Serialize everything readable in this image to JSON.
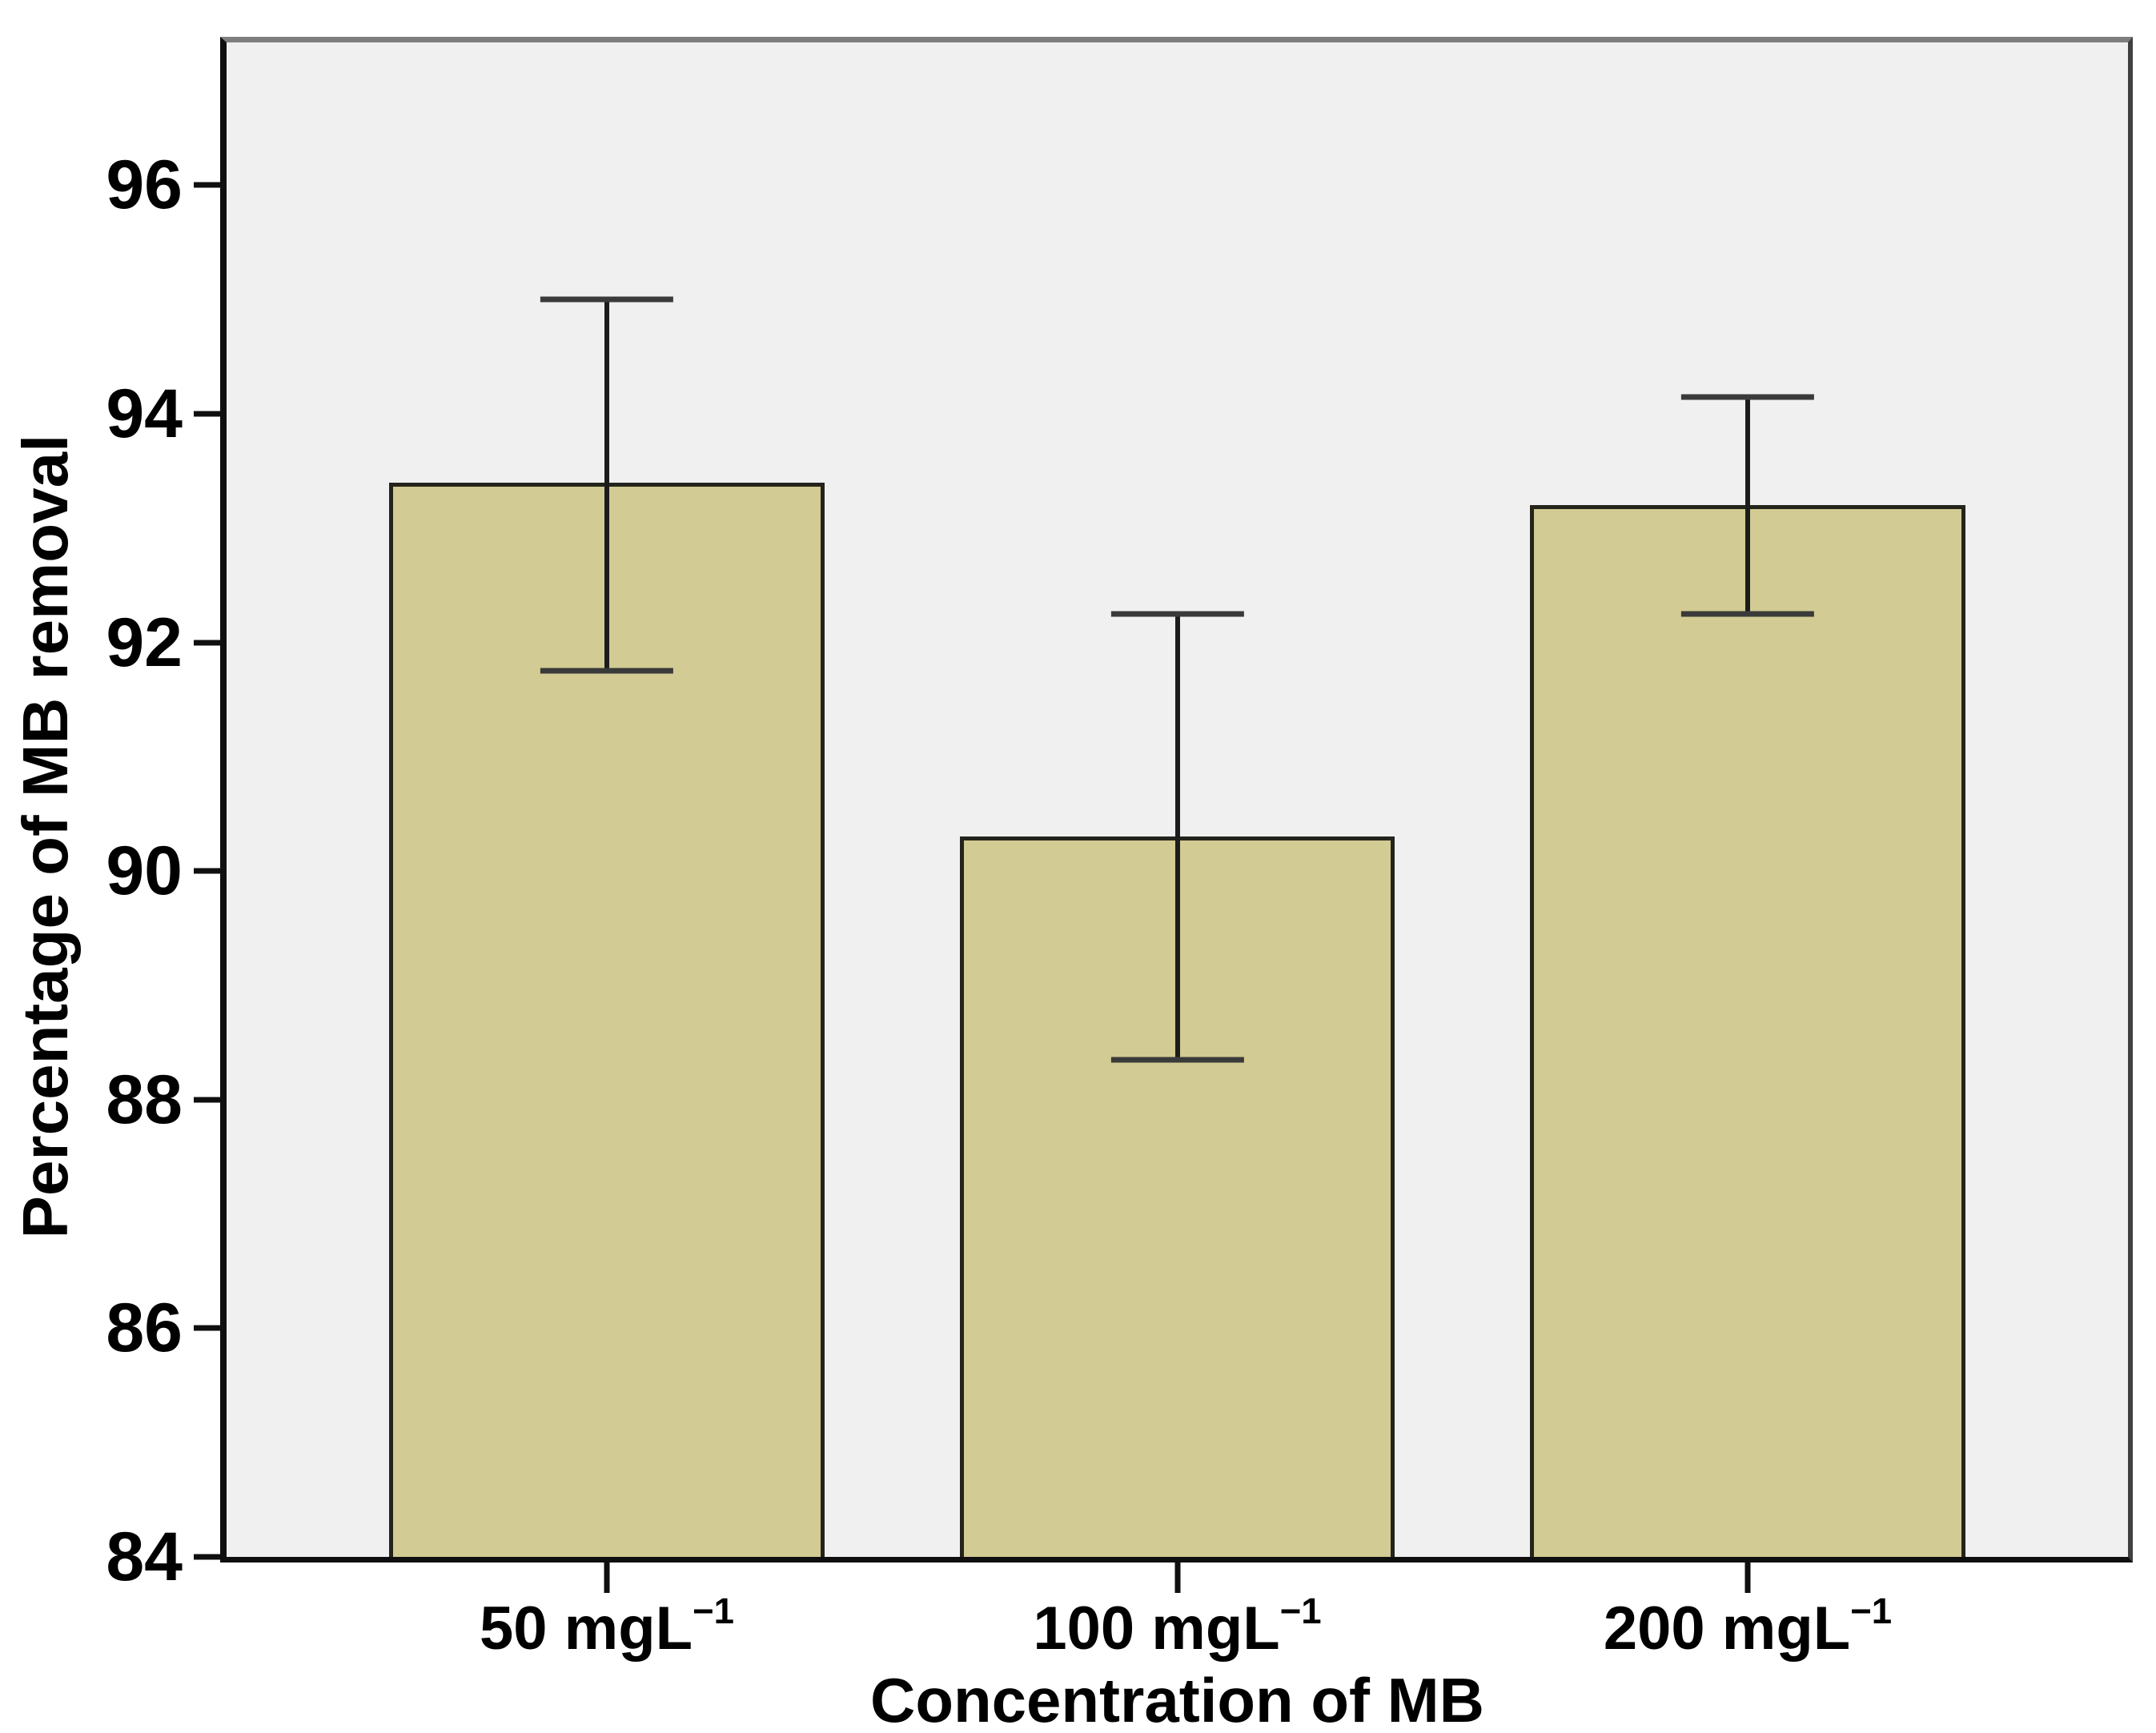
{
  "chart_data": {
    "type": "bar",
    "title": "",
    "xlabel": "Concentration of MB",
    "ylabel": "Percentage of MB removal",
    "categories": [
      "50 mgL−1",
      "100 mgL−1",
      "200 mgL−1"
    ],
    "category_labels": [
      {
        "base": "50 mgL",
        "sup": "−1"
      },
      {
        "base": "100 mgL",
        "sup": "−1"
      },
      {
        "base": "200 mgL",
        "sup": "−1"
      }
    ],
    "values": [
      93.4,
      90.3,
      93.2
    ],
    "error_high": [
      95.0,
      92.25,
      94.15
    ],
    "error_low": [
      91.75,
      88.35,
      92.25
    ],
    "y_ticks": [
      84,
      86,
      88,
      90,
      92,
      94,
      96
    ],
    "ylim": [
      84,
      97.25
    ],
    "grid": false,
    "legend": null,
    "layout": {
      "bar_centers_frac": [
        0.2,
        0.5,
        0.8
      ],
      "bar_width_frac": 0.229,
      "cap_width_frac": 0.07
    },
    "colors": {
      "bar_fill": "#d2cb93",
      "bar_border": "#24241c",
      "error_line": "#1c1c1c",
      "error_cap": "#3a3a3a",
      "plot_bg": "#f0f0f0",
      "frame_top": "#7e7e7e",
      "frame_right": "#3f3f3f",
      "frame_dark": "#0f0f0f",
      "page_bg": "#ffffff",
      "text": "#000000"
    }
  }
}
